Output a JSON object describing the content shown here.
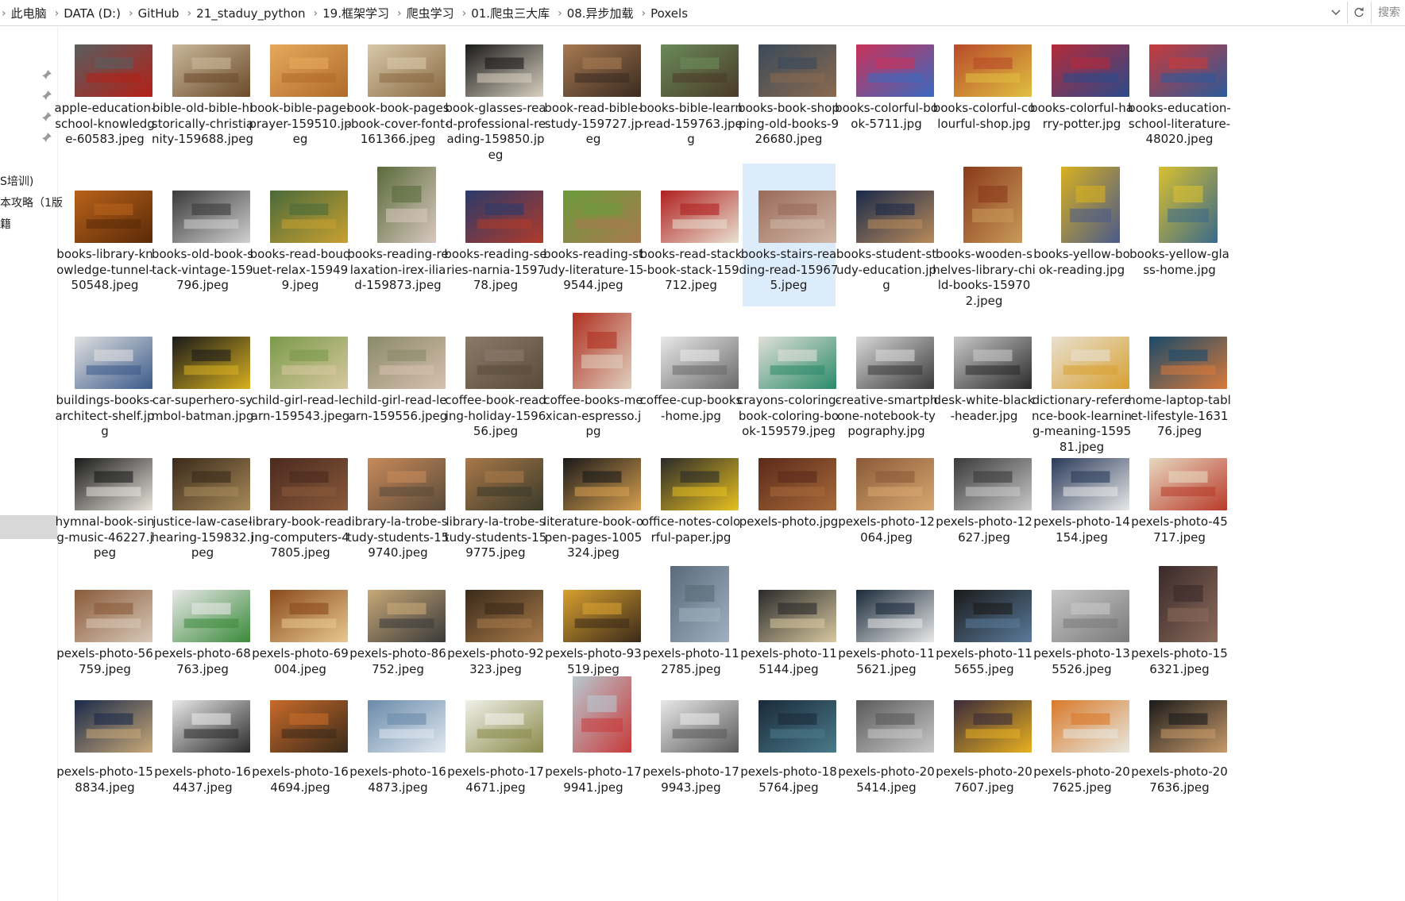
{
  "address_bar": {
    "path": [
      "此电脑",
      "DATA (D:)",
      "GitHub",
      "21_staduy_python",
      "19.框架学习",
      "爬虫学习",
      "01.爬虫三大库",
      "08.异步加载",
      "Poxels"
    ],
    "search_placeholder": "搜索"
  },
  "nav_pane": {
    "items": [
      "S培训)",
      "本攻略（1版",
      "籍"
    ]
  },
  "files": [
    {
      "name": "apple-education-school-knowledge-60583.jpeg",
      "colors": [
        "#5a5d5f",
        "#b32017"
      ]
    },
    {
      "name": "bible-old-bible-historically-christianity-159688.jpeg",
      "colors": [
        "#c9b89a",
        "#6b4a2a"
      ]
    },
    {
      "name": "book-bible-page-prayer-159510.jpeg",
      "colors": [
        "#e6a95c",
        "#b06a2a"
      ]
    },
    {
      "name": "book-book-pages-book-cover-font-161366.jpeg",
      "colors": [
        "#d8c8a8",
        "#8a6a44"
      ]
    },
    {
      "name": "book-glasses-read-professional-reading-159850.jpeg",
      "colors": [
        "#1a1a1a",
        "#d8d0c0"
      ]
    },
    {
      "name": "book-read-bible-study-159727.jpeg",
      "colors": [
        "#a77a52",
        "#3a2a20"
      ]
    },
    {
      "name": "books-bible-learn-read-159763.jpeg",
      "colors": [
        "#6a8a5a",
        "#4a3a28"
      ]
    },
    {
      "name": "books-book-shopping-old-books-926680.jpeg",
      "colors": [
        "#3a4a5a",
        "#8a6a50"
      ]
    },
    {
      "name": "books-colorful-book-5711.jpg",
      "colors": [
        "#c8325a",
        "#3a6ac0"
      ]
    },
    {
      "name": "books-colorful-colourful-shop.jpg",
      "colors": [
        "#b84a2a",
        "#e0c040"
      ]
    },
    {
      "name": "books-colorful-harry-potter.jpg",
      "colors": [
        "#b42a3a",
        "#2a4a8a"
      ]
    },
    {
      "name": "books-education-school-literature-48020.jpeg",
      "colors": [
        "#c83a3a",
        "#2a5a9a"
      ]
    },
    {
      "name": "books-library-knowledge-tunnel-50548.jpeg",
      "colors": [
        "#b8621a",
        "#5a2a08"
      ]
    },
    {
      "name": "books-old-book-stack-vintage-159796.jpeg",
      "colors": [
        "#3a3a3a",
        "#d0d0d0"
      ]
    },
    {
      "name": "books-read-bouquet-relax-159499.jpeg",
      "colors": [
        "#4a6a3a",
        "#c8a030"
      ]
    },
    {
      "name": "books-reading-relaxation-irex-iliad-159873.jpeg",
      "colors": [
        "#5a6a3a",
        "#d8c8c0"
      ]
    },
    {
      "name": "books-reading-series-narnia-159778.jpeg",
      "colors": [
        "#2a3a6a",
        "#b03a2a"
      ]
    },
    {
      "name": "books-reading-study-literature-159544.jpeg",
      "colors": [
        "#6a9a3a",
        "#a87a50"
      ]
    },
    {
      "name": "books-read-stack-book-stack-159712.jpeg",
      "colors": [
        "#b02020",
        "#e8e0d0"
      ]
    },
    {
      "name": "books-stairs-reading-read-159675.jpeg",
      "colors": [
        "#9a6a5a",
        "#d0b8a8"
      ]
    },
    {
      "name": "books-student-study-education.jpg",
      "colors": [
        "#1a2a4a",
        "#b88a5a"
      ]
    },
    {
      "name": "books-wooden-shelves-library-child-books-159702.jpeg",
      "colors": [
        "#8a3a1a",
        "#c89a5a"
      ]
    },
    {
      "name": "books-yellow-book-reading.jpg",
      "colors": [
        "#d8b020",
        "#4a5a8a"
      ]
    },
    {
      "name": "books-yellow-glass-home.jpg",
      "colors": [
        "#d8c030",
        "#3a6a8a"
      ]
    },
    {
      "name": "buildings-books-architect-shelf.jpg",
      "colors": [
        "#e0e0e0",
        "#3a5a8a"
      ]
    },
    {
      "name": "car-superhero-symbol-batman.jpg",
      "colors": [
        "#1a1a1a",
        "#d8b020"
      ]
    },
    {
      "name": "child-girl-read-learn-159543.jpeg",
      "colors": [
        "#7a9a4a",
        "#d8c8a0"
      ]
    },
    {
      "name": "child-girl-read-learn-159556.jpeg",
      "colors": [
        "#8a8a6a",
        "#d8c0b0"
      ]
    },
    {
      "name": "coffee-book-reading-holiday-159656.jpeg",
      "colors": [
        "#8a7a6a",
        "#5a4a3a"
      ]
    },
    {
      "name": "coffee-books-mexican-espresso.jpg",
      "colors": [
        "#b03020",
        "#e0d0c0"
      ]
    },
    {
      "name": "coffee-cup-books-home.jpg",
      "colors": [
        "#e8e8e8",
        "#6a6a6a"
      ]
    },
    {
      "name": "crayons-coloring-book-coloring-book-159579.jpeg",
      "colors": [
        "#e0e0d8",
        "#2a8a6a"
      ]
    },
    {
      "name": "creative-smartphone-notebook-typography.jpg",
      "colors": [
        "#d8d8d8",
        "#3a3a3a"
      ]
    },
    {
      "name": "desk-white-black-header.jpg",
      "colors": [
        "#c8c8c8",
        "#2a2a2a"
      ]
    },
    {
      "name": "dictionary-reference-book-learning-meaning-159581.jpeg",
      "colors": [
        "#e8e0d0",
        "#d8a030"
      ]
    },
    {
      "name": "home-laptop-tablet-lifestyle-163176.jpeg",
      "colors": [
        "#1a4a6a",
        "#d87a3a"
      ]
    },
    {
      "name": "hymnal-book-sing-music-46227.jpeg",
      "colors": [
        "#1a1a1a",
        "#e8e4dc"
      ]
    },
    {
      "name": "justice-law-case-hearing-159832.jpeg",
      "colors": [
        "#3a2a1a",
        "#a88a5a"
      ]
    },
    {
      "name": "library-book-reading-computers-47805.jpeg",
      "colors": [
        "#4a2a20",
        "#8a5a3a"
      ]
    },
    {
      "name": "library-la-trobe-study-students-159740.jpeg",
      "colors": [
        "#c88a5a",
        "#5a4a3a"
      ]
    },
    {
      "name": "library-la-trobe-study-students-159775.jpeg",
      "colors": [
        "#a8784a",
        "#3a3a2a"
      ]
    },
    {
      "name": "literature-book-open-pages-1005324.jpeg",
      "colors": [
        "#1a1a1a",
        "#d8a050"
      ]
    },
    {
      "name": "office-notes-colorful-paper.jpg",
      "colors": [
        "#2a2a2a",
        "#e8c020"
      ]
    },
    {
      "name": "pexels-photo.jpg",
      "colors": [
        "#5a2a1a",
        "#a86a3a"
      ]
    },
    {
      "name": "pexels-photo-12064.jpeg",
      "colors": [
        "#8a5a3a",
        "#d8a870"
      ]
    },
    {
      "name": "pexels-photo-12627.jpeg",
      "colors": [
        "#3a3a3a",
        "#c8c8c8"
      ]
    },
    {
      "name": "pexels-photo-14154.jpeg",
      "colors": [
        "#2a3a5a",
        "#e8e8e8"
      ]
    },
    {
      "name": "pexels-photo-45717.jpeg",
      "colors": [
        "#e8d8c0",
        "#b83a2a"
      ]
    },
    {
      "name": "pexels-photo-56759.jpeg",
      "colors": [
        "#8a5a3a",
        "#d8c8b8"
      ]
    },
    {
      "name": "pexels-photo-68763.jpeg",
      "colors": [
        "#e8e8e8",
        "#3a8a3a"
      ]
    },
    {
      "name": "pexels-photo-69004.jpeg",
      "colors": [
        "#8a4a1a",
        "#e8c890"
      ]
    },
    {
      "name": "pexels-photo-86752.jpeg",
      "colors": [
        "#c8a878",
        "#3a3a3a"
      ]
    },
    {
      "name": "pexels-photo-92323.jpeg",
      "colors": [
        "#3a2a1a",
        "#a87a4a"
      ]
    },
    {
      "name": "pexels-photo-93519.jpeg",
      "colors": [
        "#d8a030",
        "#3a2a1a"
      ]
    },
    {
      "name": "pexels-photo-112785.jpeg",
      "colors": [
        "#5a6a7a",
        "#a0b0c0"
      ]
    },
    {
      "name": "pexels-photo-115144.jpeg",
      "colors": [
        "#2a2a2a",
        "#d8c8a0"
      ]
    },
    {
      "name": "pexels-photo-115621.jpeg",
      "colors": [
        "#1a2a3a",
        "#e8e8e8"
      ]
    },
    {
      "name": "pexels-photo-115655.jpeg",
      "colors": [
        "#1a1a1a",
        "#5a7a9a"
      ]
    },
    {
      "name": "pexels-photo-135526.jpeg",
      "colors": [
        "#c8c8c8",
        "#7a7a7a"
      ]
    },
    {
      "name": "pexels-photo-156321.jpeg",
      "colors": [
        "#3a2a2a",
        "#8a6a5a"
      ]
    },
    {
      "name": "pexels-photo-158834.jpeg",
      "colors": [
        "#1a2a4a",
        "#c8a878"
      ]
    },
    {
      "name": "pexels-photo-164437.jpeg",
      "colors": [
        "#e8e8e8",
        "#2a2a2a"
      ]
    },
    {
      "name": "pexels-photo-164694.jpeg",
      "colors": [
        "#c86a2a",
        "#3a2a1a"
      ]
    },
    {
      "name": "pexels-photo-164873.jpeg",
      "colors": [
        "#6a8aaa",
        "#e0e8f0"
      ]
    },
    {
      "name": "pexels-photo-174671.jpeg",
      "colors": [
        "#f0f0ea",
        "#8a8a4a"
      ]
    },
    {
      "name": "pexels-photo-179941.jpeg",
      "colors": [
        "#b8c8d0",
        "#c83a3a"
      ]
    },
    {
      "name": "pexels-photo-179943.jpeg",
      "colors": [
        "#e8e8e8",
        "#5a5a5a"
      ]
    },
    {
      "name": "pexels-photo-185764.jpeg",
      "colors": [
        "#1a2a3a",
        "#4a7a8a"
      ]
    },
    {
      "name": "pexels-photo-205414.jpeg",
      "colors": [
        "#5a5a5a",
        "#c8c8c8"
      ]
    },
    {
      "name": "pexels-photo-207607.jpeg",
      "colors": [
        "#3a2a3a",
        "#e8b020"
      ]
    },
    {
      "name": "pexels-photo-207625.jpeg",
      "colors": [
        "#d87a2a",
        "#e8e8e0"
      ]
    },
    {
      "name": "pexels-photo-207636.jpeg",
      "colors": [
        "#1a1a1a",
        "#c89a6a"
      ]
    }
  ],
  "selected_index": 19
}
